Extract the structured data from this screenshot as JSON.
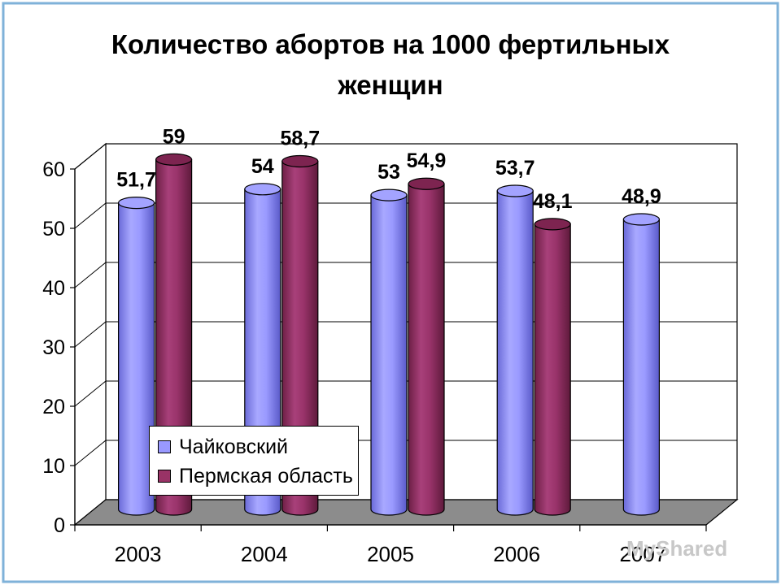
{
  "chart_data": {
    "type": "bar",
    "title_lines": [
      "Количество абортов на 1000 фертильных",
      "женщин"
    ],
    "categories": [
      "2003",
      "2004",
      "2005",
      "2006",
      "2007"
    ],
    "series": [
      {
        "name": "Чайковский",
        "color": "#9999ff",
        "values": [
          51.7,
          54,
          53,
          53.7,
          48.9
        ],
        "labels": [
          "51,7",
          "54",
          "53",
          "53,7",
          "48,9"
        ]
      },
      {
        "name": "Пермская область",
        "color": "#993366",
        "values": [
          59,
          58.7,
          54.9,
          48.1,
          null
        ],
        "labels": [
          "59",
          "58,7",
          "54,9",
          "48,1",
          ""
        ]
      }
    ],
    "y_ticks": [
      "0",
      "10",
      "20",
      "30",
      "40",
      "50",
      "60"
    ],
    "ylim": [
      0,
      60
    ],
    "grid": true,
    "legend_position": "bottom-left"
  },
  "watermark": "MyShared"
}
